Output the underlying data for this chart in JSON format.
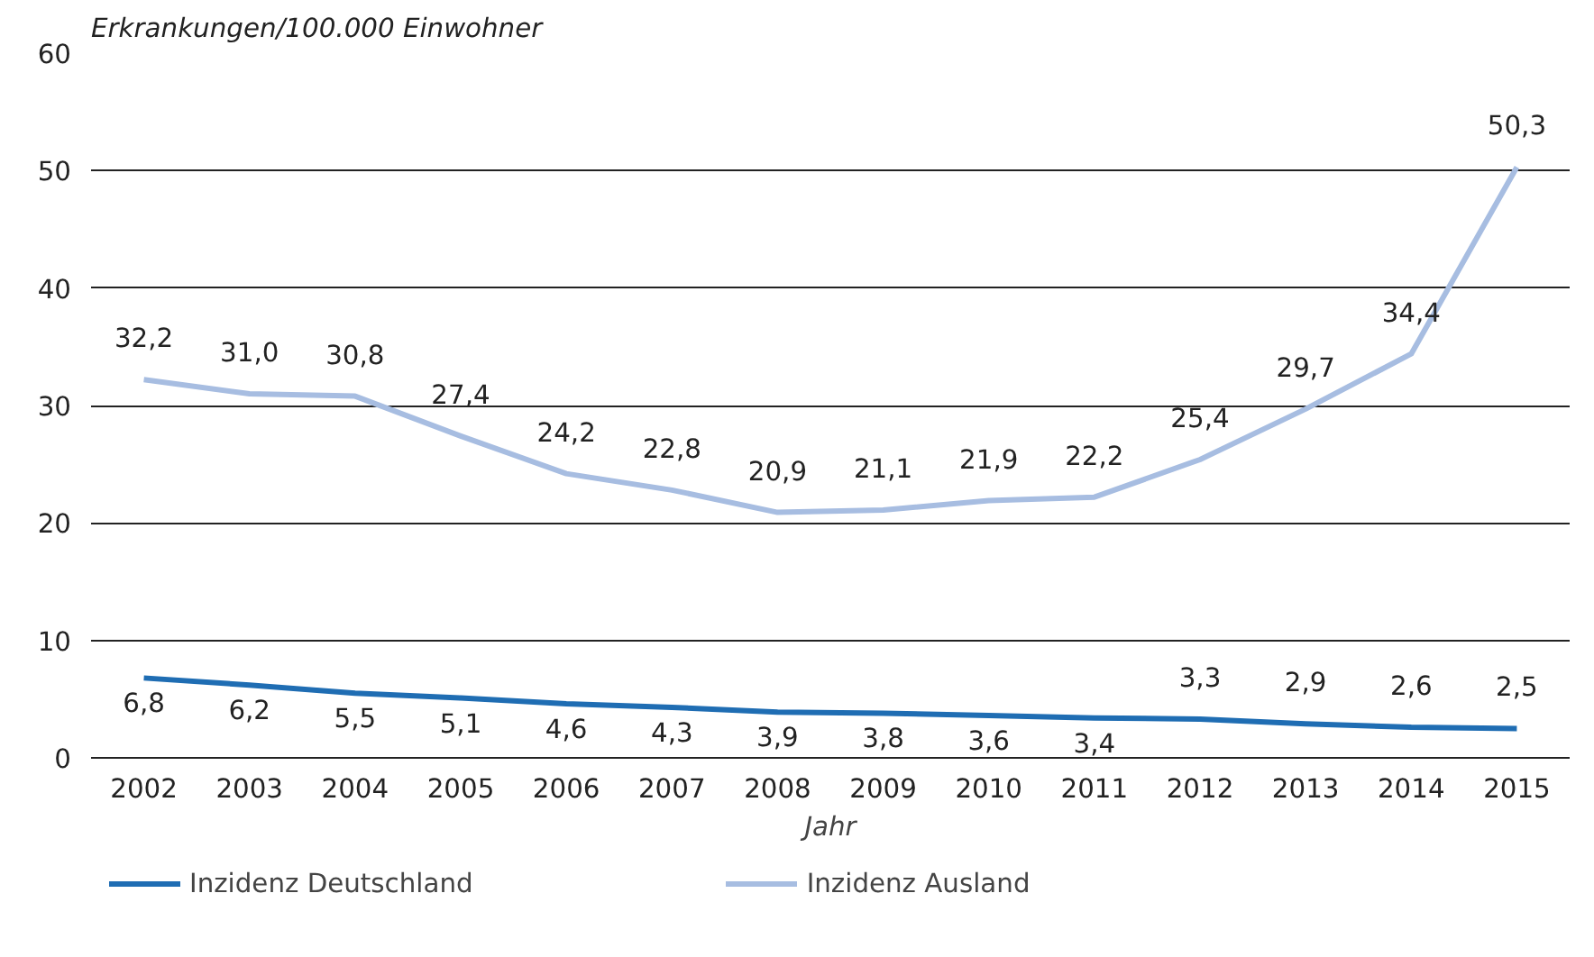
{
  "chart_data": {
    "type": "line",
    "ylabel": "Erkrankungen/100.000 Einwohner",
    "xlabel": "Jahr",
    "categories": [
      "2002",
      "2003",
      "2004",
      "2005",
      "2006",
      "2007",
      "2008",
      "2009",
      "2010",
      "2011",
      "2012",
      "2013",
      "2014",
      "2015"
    ],
    "series": [
      {
        "name": "Inzidenz Deutschland",
        "color": "#1f6db3",
        "values": [
          6.8,
          6.2,
          5.5,
          5.1,
          4.6,
          4.3,
          3.9,
          3.8,
          3.6,
          3.4,
          3.3,
          2.9,
          2.6,
          2.5
        ],
        "value_labels": [
          "6,8",
          "6,2",
          "5,5",
          "5,1",
          "4,6",
          "4,3",
          "3,9",
          "3,8",
          "3,6",
          "3,4",
          "3,3",
          "2,9",
          "2,6",
          "2,5"
        ]
      },
      {
        "name": "Inzidenz Ausland",
        "color": "#a7bde1",
        "values": [
          32.2,
          31.0,
          30.8,
          27.4,
          24.2,
          22.8,
          20.9,
          21.1,
          21.9,
          22.2,
          25.4,
          29.7,
          34.4,
          50.3
        ],
        "value_labels": [
          "32,2",
          "31,0",
          "30,8",
          "27,4",
          "24,2",
          "22,8",
          "20,9",
          "21,1",
          "21,9",
          "22,2",
          "25,4",
          "29,7",
          "34,4",
          "50,3"
        ]
      }
    ],
    "ylim": [
      0,
      60
    ],
    "yticks": [
      0,
      10,
      20,
      30,
      40,
      50,
      60
    ],
    "grid": "y",
    "legend": "bottom",
    "marker": "none",
    "line_style": "solid"
  }
}
